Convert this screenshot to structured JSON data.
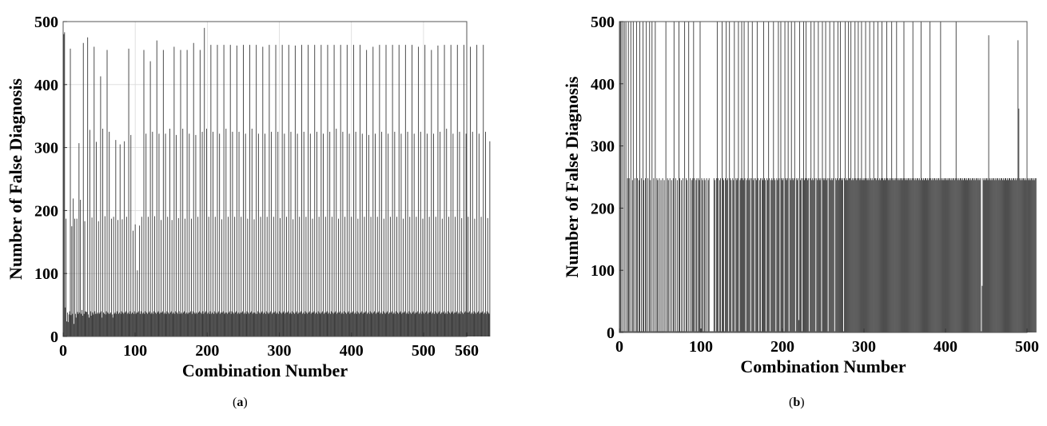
{
  "chart_data": [
    {
      "id": "a",
      "type": "bar",
      "caption": "a",
      "xlabel": "Combination Number",
      "ylabel": "Number of False Diagnosis",
      "xlim": [
        0,
        560
      ],
      "ylim": [
        0,
        500
      ],
      "xticks": [
        0,
        100,
        200,
        300,
        400,
        500,
        560
      ],
      "yticks": [
        0,
        100,
        200,
        300,
        400,
        500
      ],
      "grid": true,
      "bar_color": "#3a3a3a",
      "x_start": 1,
      "values": [
        480,
        483,
        46,
        187,
        24,
        38,
        23,
        35,
        40,
        457,
        34,
        175,
        36,
        219,
        20,
        187,
        36,
        30,
        187,
        39,
        36,
        307,
        38,
        217,
        36,
        42,
        33,
        466,
        36,
        183,
        40,
        39,
        39,
        475,
        35,
        30,
        328,
        40,
        33,
        189,
        38,
        35,
        460,
        40,
        36,
        309,
        36,
        38,
        183,
        36,
        38,
        413,
        40,
        30,
        330,
        38,
        36,
        191,
        35,
        40,
        455,
        38,
        36,
        325,
        36,
        38,
        187,
        35,
        30,
        190,
        36,
        38,
        312,
        36,
        40,
        185,
        36,
        38,
        305,
        36,
        40,
        186,
        38,
        36,
        310,
        38,
        40,
        190,
        36,
        38,
        457,
        36,
        40,
        320,
        36,
        38,
        168,
        36,
        40,
        178,
        36,
        38,
        105,
        38,
        40,
        176,
        36,
        40,
        190,
        36,
        38,
        455,
        36,
        40,
        322,
        38,
        36,
        190,
        38,
        40,
        437,
        36,
        38,
        325,
        36,
        40,
        191,
        38,
        36,
        470,
        38,
        40,
        322,
        36,
        38,
        185,
        38,
        40,
        455,
        36,
        38,
        322,
        36,
        40,
        190,
        38,
        36,
        330,
        38,
        40,
        185,
        36,
        38,
        460,
        36,
        40,
        320,
        38,
        36,
        188,
        40,
        36,
        455,
        38,
        36,
        330,
        38,
        40,
        187,
        36,
        38,
        455,
        36,
        38,
        322,
        38,
        40,
        187,
        36,
        40,
        466,
        38,
        36,
        320,
        38,
        36,
        190,
        38,
        40,
        455,
        38,
        36,
        325,
        40,
        36,
        490,
        38,
        40,
        330,
        36,
        38,
        190,
        36,
        40,
        463,
        36,
        38,
        325,
        36,
        40,
        190,
        38,
        36,
        463,
        38,
        40,
        322,
        36,
        38,
        186,
        38,
        40,
        463,
        36,
        38,
        330,
        38,
        36,
        190,
        38,
        40,
        463,
        36,
        40,
        325,
        38,
        36,
        190,
        38,
        40,
        462,
        36,
        38,
        325,
        36,
        38,
        190,
        38,
        40,
        463,
        36,
        38,
        322,
        36,
        40,
        187,
        38,
        36,
        463,
        38,
        40,
        330,
        36,
        38,
        186,
        38,
        36,
        463,
        36,
        40,
        322,
        38,
        36,
        190,
        38,
        40,
        460,
        36,
        38,
        322,
        36,
        40,
        190,
        38,
        36,
        463,
        38,
        40,
        325,
        36,
        38,
        190,
        38,
        40,
        463,
        36,
        38,
        325,
        36,
        40,
        188,
        38,
        36,
        463,
        38,
        40,
        322,
        36,
        38,
        190,
        38,
        40,
        463,
        36,
        38,
        325,
        36,
        40,
        186,
        38,
        36,
        462,
        38,
        40,
        322,
        36,
        38,
        190,
        38,
        40,
        463,
        36,
        38,
        325,
        36,
        40,
        190,
        38,
        36,
        463,
        38,
        40,
        322,
        36,
        38,
        187,
        38,
        40,
        463,
        36,
        38,
        325,
        36,
        40,
        190,
        38,
        36,
        463,
        38,
        40,
        322,
        36,
        38,
        190,
        38,
        40,
        463,
        36,
        38,
        325,
        36,
        40,
        190,
        38,
        36,
        463,
        38,
        40,
        330,
        36,
        38,
        187,
        38,
        40,
        463,
        36,
        38,
        325,
        36,
        40,
        190,
        38,
        36,
        463,
        38,
        40,
        322,
        36,
        38,
        190,
        38,
        40,
        463,
        36,
        38,
        325,
        36,
        40,
        187,
        38,
        36,
        463,
        38,
        40,
        322,
        36,
        38,
        190,
        38,
        40,
        455,
        36,
        38,
        320,
        36,
        40,
        190,
        38,
        36,
        460,
        38,
        40,
        322,
        36,
        38,
        190,
        38,
        40,
        463,
        36,
        38,
        325,
        36,
        40,
        187,
        38,
        36,
        463,
        38,
        40,
        322,
        36,
        38,
        190,
        38,
        40,
        463,
        36,
        38,
        325,
        36,
        40,
        190,
        38,
        36,
        463,
        38,
        40,
        322,
        36,
        38,
        187,
        38,
        40,
        463,
        36,
        38,
        325,
        36,
        40,
        190,
        38,
        36,
        463,
        38,
        40,
        322,
        36,
        38,
        190,
        38,
        40,
        460,
        36,
        38,
        325,
        36,
        40,
        187,
        38,
        36,
        463,
        38,
        40,
        322,
        36,
        38,
        190,
        38,
        40,
        455,
        36,
        38,
        322,
        36,
        40,
        190,
        38,
        36,
        462,
        38,
        40,
        325,
        36,
        38,
        187,
        38,
        40,
        463,
        36,
        38,
        330,
        36,
        40,
        190,
        38,
        36,
        463,
        38,
        40,
        322,
        36,
        38,
        190,
        38,
        40,
        463,
        36,
        38,
        325,
        36,
        40,
        188,
        38,
        36,
        463,
        38,
        40,
        322,
        36,
        38,
        190,
        38,
        40,
        460,
        36,
        38,
        325,
        36,
        40,
        187,
        38,
        36,
        463,
        38,
        40,
        322,
        36,
        38,
        190,
        38,
        40,
        463,
        36,
        38,
        325,
        36,
        40,
        188,
        38,
        36,
        310
      ]
    },
    {
      "id": "b",
      "type": "bar",
      "caption": "b",
      "xlabel": "Combination Number",
      "ylabel": "Number of False Diagnosis",
      "xlim": [
        0,
        500
      ],
      "ylim": [
        0,
        500
      ],
      "xticks": [
        0,
        100,
        200,
        300,
        400,
        500
      ],
      "yticks": [
        0,
        100,
        200,
        300,
        400,
        500
      ],
      "grid": false,
      "bar_color": "#3a3a3a",
      "x_start": 1,
      "values": [
        500,
        500,
        2,
        500,
        2,
        500,
        2,
        500,
        2,
        248,
        500,
        248,
        2,
        500,
        2,
        245,
        500,
        2,
        248,
        2,
        500,
        248,
        2,
        245,
        500,
        2,
        248,
        2,
        500,
        245,
        2,
        248,
        500,
        2,
        248,
        2,
        500,
        245,
        2,
        500,
        2,
        248,
        2,
        500,
        2,
        248,
        245,
        2,
        248,
        2,
        245,
        2,
        248,
        2,
        245,
        2,
        500,
        2,
        248,
        245,
        2,
        248,
        2,
        245,
        2,
        248,
        500,
        2,
        248,
        2,
        245,
        2,
        500,
        248,
        2,
        245,
        2,
        248,
        2,
        500,
        2,
        248,
        245,
        2,
        500,
        2,
        248,
        2,
        245,
        248,
        500,
        248,
        2,
        245,
        248,
        2,
        248,
        245,
        500,
        2,
        248,
        245,
        2,
        248,
        245,
        2,
        248,
        2,
        245,
        248,
        2,
        2,
        2,
        2,
        2,
        248,
        245,
        2,
        248,
        500,
        248,
        2,
        245,
        248,
        2,
        500,
        248,
        245,
        2,
        248,
        500,
        245,
        248,
        2,
        500,
        248,
        245,
        2,
        248,
        245,
        500,
        2,
        248,
        245,
        248,
        500,
        2,
        245,
        248,
        500,
        248,
        245,
        500,
        248,
        2,
        245,
        248,
        500,
        245,
        248,
        2,
        248,
        500,
        245,
        248,
        2,
        248,
        245,
        500,
        248,
        2,
        245,
        248,
        2,
        248,
        245,
        500,
        248,
        245,
        2,
        248,
        245,
        500,
        248,
        2,
        245,
        248,
        245,
        500,
        248,
        245,
        2,
        248,
        245,
        500,
        248,
        2,
        500,
        248,
        245,
        248,
        2,
        500,
        248,
        245,
        248,
        500,
        2,
        248,
        245,
        500,
        248,
        245,
        248,
        500,
        2,
        248,
        245,
        248,
        20,
        500,
        245,
        248,
        2,
        248,
        500,
        245,
        248,
        500,
        248,
        245,
        248,
        2,
        248,
        500,
        245,
        248,
        245,
        500,
        248,
        2,
        248,
        245,
        500,
        248,
        245,
        248,
        2,
        500,
        248,
        245,
        248,
        500,
        245,
        248,
        2,
        248,
        500,
        245,
        248,
        245,
        248,
        500,
        2,
        248,
        245,
        248,
        500,
        245,
        248,
        500,
        248,
        245,
        248,
        2,
        248,
        500,
        245,
        248,
        245,
        500,
        248,
        248,
        500,
        245,
        248,
        245,
        248,
        500,
        248,
        245,
        248,
        500,
        248,
        245,
        248,
        500,
        245,
        248,
        245,
        248,
        500,
        248,
        245,
        248,
        245,
        500,
        248,
        245,
        248,
        245,
        500,
        248,
        248,
        245,
        248,
        500,
        245,
        248,
        245,
        248,
        500,
        248,
        245,
        248,
        245,
        248,
        500,
        248,
        245,
        248,
        245,
        248,
        500,
        248,
        245,
        248,
        245,
        248,
        500,
        248,
        245,
        248,
        245,
        248,
        248,
        245,
        248,
        500,
        248,
        245,
        248,
        245,
        248,
        248,
        245,
        248,
        245,
        248,
        500,
        248,
        245,
        248,
        245,
        248,
        248,
        245,
        248,
        245,
        500,
        248,
        245,
        248,
        245,
        248,
        248,
        245,
        248,
        245,
        248,
        500,
        248,
        245,
        248,
        245,
        248,
        248,
        245,
        248,
        245,
        248,
        248,
        245,
        500,
        248,
        245,
        248,
        245,
        248,
        248,
        245,
        248,
        245,
        248,
        248,
        245,
        248,
        245,
        248,
        248,
        245,
        248,
        500,
        248,
        245,
        248,
        245,
        248,
        248,
        245,
        248,
        245,
        248,
        248,
        245,
        248,
        245,
        248,
        248,
        245,
        248,
        245,
        248,
        248,
        245,
        248,
        245,
        248,
        248,
        245,
        248,
        245,
        248,
        2,
        75,
        248,
        245,
        248,
        245,
        248,
        248,
        245,
        478,
        248,
        245,
        248,
        245,
        248,
        248,
        245,
        248,
        245,
        248,
        248,
        245,
        248,
        245,
        248,
        248,
        245,
        248,
        245,
        248,
        248,
        245,
        248,
        245,
        248,
        248,
        245,
        248,
        245,
        248,
        248,
        245,
        248,
        245,
        248,
        470,
        360,
        248,
        245,
        248,
        245,
        248,
        248,
        245,
        248,
        245,
        248,
        248,
        245,
        248,
        245,
        248,
        248,
        245,
        248,
        245,
        248,
        248
      ]
    }
  ]
}
